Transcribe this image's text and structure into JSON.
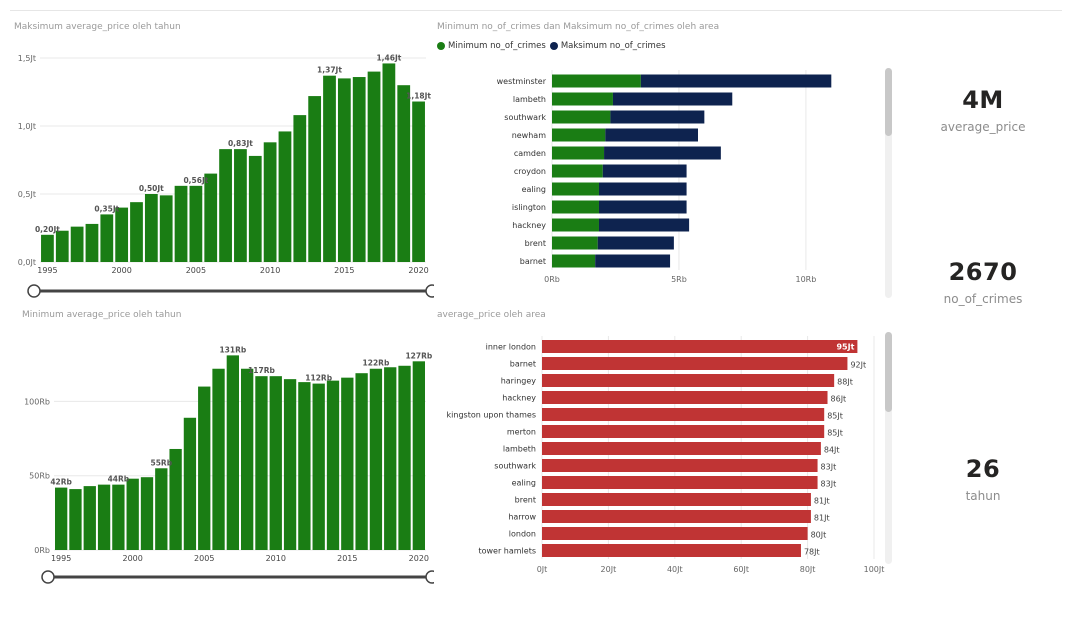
{
  "colors": {
    "green": "#1a7d14",
    "navy": "#0e234f",
    "red": "#c03434",
    "axis": "#666666",
    "grid": "#e8e8e8"
  },
  "cards": [
    {
      "value": "4M",
      "label": "average_price"
    },
    {
      "value": "2670",
      "label": "no_of_crimes"
    },
    {
      "value": "26",
      "label": "tahun"
    }
  ],
  "chart_data": [
    {
      "id": "max_price_year",
      "type": "bar",
      "title": "Maksimum average_price oleh tahun",
      "x": [
        1995,
        1996,
        1997,
        1998,
        1999,
        2000,
        2001,
        2002,
        2003,
        2004,
        2005,
        2006,
        2007,
        2008,
        2009,
        2010,
        2011,
        2012,
        2013,
        2014,
        2015,
        2016,
        2017,
        2018,
        2019,
        2020
      ],
      "values": [
        0.2,
        0.23,
        0.26,
        0.28,
        0.35,
        0.4,
        0.44,
        0.5,
        0.49,
        0.56,
        0.56,
        0.65,
        0.83,
        0.83,
        0.78,
        0.88,
        0.96,
        1.08,
        1.22,
        1.37,
        1.35,
        1.36,
        1.4,
        1.46,
        1.3,
        1.18
      ],
      "data_labels": [
        {
          "x": 1995,
          "text": "0,20Jt"
        },
        {
          "x": 1999,
          "text": "0,35Jt"
        },
        {
          "x": 2002,
          "text": "0,50Jt"
        },
        {
          "x": 2005,
          "text": "0,56Jt"
        },
        {
          "x": 2008,
          "text": "0,83Jt"
        },
        {
          "x": 2014,
          "text": "1,37Jt"
        },
        {
          "x": 2018,
          "text": "1,46Jt"
        },
        {
          "x": 2020,
          "text": "1,18Jt"
        }
      ],
      "yticks": [
        {
          "v": 0,
          "text": "0,0Jt"
        },
        {
          "v": 0.5,
          "text": "0,5Jt"
        },
        {
          "v": 1.0,
          "text": "1,0Jt"
        },
        {
          "v": 1.5,
          "text": "1,5Jt"
        }
      ],
      "xticks": [
        "1995",
        "2000",
        "2005",
        "2010",
        "2015",
        "2020"
      ],
      "ylim": [
        0,
        1.5
      ]
    },
    {
      "id": "min_price_year",
      "type": "bar",
      "title": "Minimum average_price oleh tahun",
      "x": [
        1995,
        1996,
        1997,
        1998,
        1999,
        2000,
        2001,
        2002,
        2003,
        2004,
        2005,
        2006,
        2007,
        2008,
        2009,
        2010,
        2011,
        2012,
        2013,
        2014,
        2015,
        2016,
        2017,
        2018,
        2019,
        2020
      ],
      "values": [
        42,
        41,
        43,
        44,
        44,
        48,
        49,
        55,
        68,
        89,
        110,
        122,
        131,
        122,
        117,
        117,
        115,
        113,
        112,
        114,
        116,
        119,
        122,
        123,
        124,
        127
      ],
      "data_labels": [
        {
          "x": 1995,
          "text": "42Rb"
        },
        {
          "x": 1999,
          "text": "44Rb"
        },
        {
          "x": 2002,
          "text": "55Rb"
        },
        {
          "x": 2007,
          "text": "131Rb"
        },
        {
          "x": 2009,
          "text": "117Rb"
        },
        {
          "x": 2013,
          "text": "112Rb"
        },
        {
          "x": 2017,
          "text": "122Rb"
        },
        {
          "x": 2020,
          "text": "127Rb"
        }
      ],
      "yticks": [
        {
          "v": 0,
          "text": "0Rb"
        },
        {
          "v": 50,
          "text": "50Rb"
        },
        {
          "v": 100,
          "text": "100Rb"
        }
      ],
      "xticks": [
        "1995",
        "2000",
        "2005",
        "2010",
        "2015",
        "2020"
      ],
      "ylim": [
        0,
        140
      ]
    },
    {
      "id": "crimes_area",
      "type": "bar",
      "orientation": "horizontal",
      "stacked": true,
      "title": "Minimum no_of_crimes dan Maksimum no_of_crimes oleh area",
      "categories": [
        "westminster",
        "lambeth",
        "southwark",
        "newham",
        "camden",
        "croydon",
        "ealing",
        "islington",
        "hackney",
        "brent",
        "barnet"
      ],
      "series": [
        {
          "name": "Minimum no_of_crimes",
          "color": "#1a7d14",
          "values": [
            3500,
            2400,
            2300,
            2100,
            2050,
            2000,
            1850,
            1850,
            1850,
            1800,
            1700
          ]
        },
        {
          "name": "Maksimum no_of_crimes",
          "color": "#0e234f",
          "values": [
            7500,
            4700,
            3700,
            3650,
            4600,
            3300,
            3450,
            3450,
            3550,
            3000,
            2950
          ]
        }
      ],
      "xticks": [
        {
          "v": 0,
          "text": "0Rb"
        },
        {
          "v": 5000,
          "text": "5Rb"
        },
        {
          "v": 10000,
          "text": "10Rb"
        }
      ],
      "xlim": [
        0,
        11500
      ]
    },
    {
      "id": "price_area",
      "type": "bar",
      "orientation": "horizontal",
      "title": "average_price oleh area",
      "categories": [
        "inner london",
        "barnet",
        "haringey",
        "hackney",
        "kingston upon thames",
        "merton",
        "lambeth",
        "southwark",
        "ealing",
        "brent",
        "harrow",
        "london",
        "tower hamlets"
      ],
      "values": [
        95,
        92,
        88,
        86,
        85,
        85,
        84,
        83,
        83,
        81,
        81,
        80,
        78
      ],
      "data_labels": [
        "95Jt",
        "92Jt",
        "88Jt",
        "86Jt",
        "85Jt",
        "85Jt",
        "84Jt",
        "83Jt",
        "83Jt",
        "81Jt",
        "81Jt",
        "80Jt",
        "78Jt"
      ],
      "xticks": [
        {
          "v": 0,
          "text": "0Jt"
        },
        {
          "v": 20,
          "text": "20Jt"
        },
        {
          "v": 40,
          "text": "40Jt"
        },
        {
          "v": 60,
          "text": "60Jt"
        },
        {
          "v": 80,
          "text": "80Jt"
        },
        {
          "v": 100,
          "text": "100Jt"
        }
      ],
      "xlim": [
        0,
        100
      ]
    }
  ]
}
